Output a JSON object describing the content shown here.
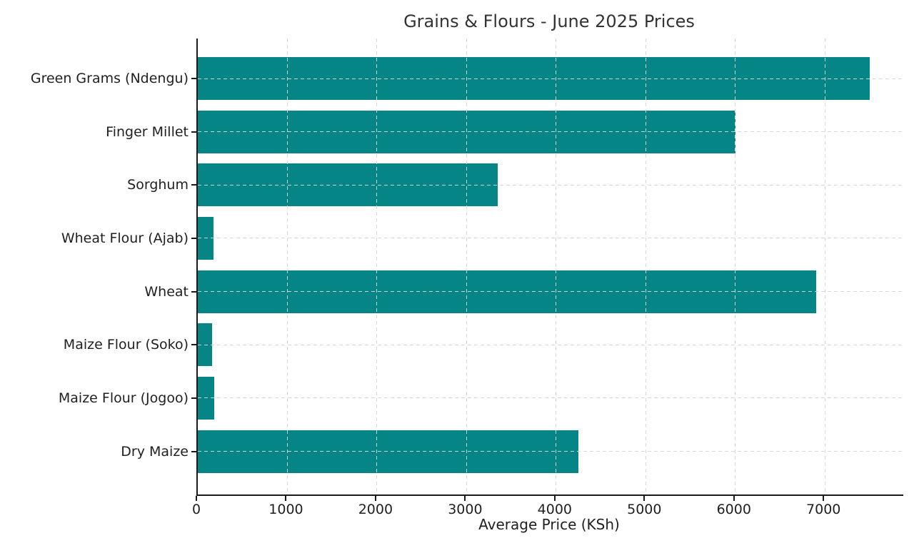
{
  "chart_data": {
    "type": "bar",
    "orientation": "horizontal",
    "title": "Grains & Flours - June 2025 Prices",
    "xlabel": "Average Price (KSh)",
    "ylabel": "",
    "categories": [
      "Green Grams (Ndengu)",
      "Finger Millet",
      "Sorghum",
      "Wheat Flour (Ajab)",
      "Wheat",
      "Maize Flour (Soko)",
      "Maize Flour (Jogoo)",
      "Dry Maize"
    ],
    "values": [
      7500,
      6000,
      3350,
      175,
      6900,
      160,
      180,
      4250
    ],
    "xticks": [
      0,
      1000,
      2000,
      3000,
      4000,
      5000,
      6000,
      7000
    ],
    "xlim": [
      0,
      7875
    ],
    "grid": "dashed light-gray gridlines on both axes, drawn over bars",
    "legend": "none",
    "colors": {
      "bar": "#058585",
      "text": "#1f1f1f",
      "title": "#333333",
      "grid": "#d6d6d6",
      "spine": "#1a1a1a",
      "background": "#ffffff"
    }
  }
}
